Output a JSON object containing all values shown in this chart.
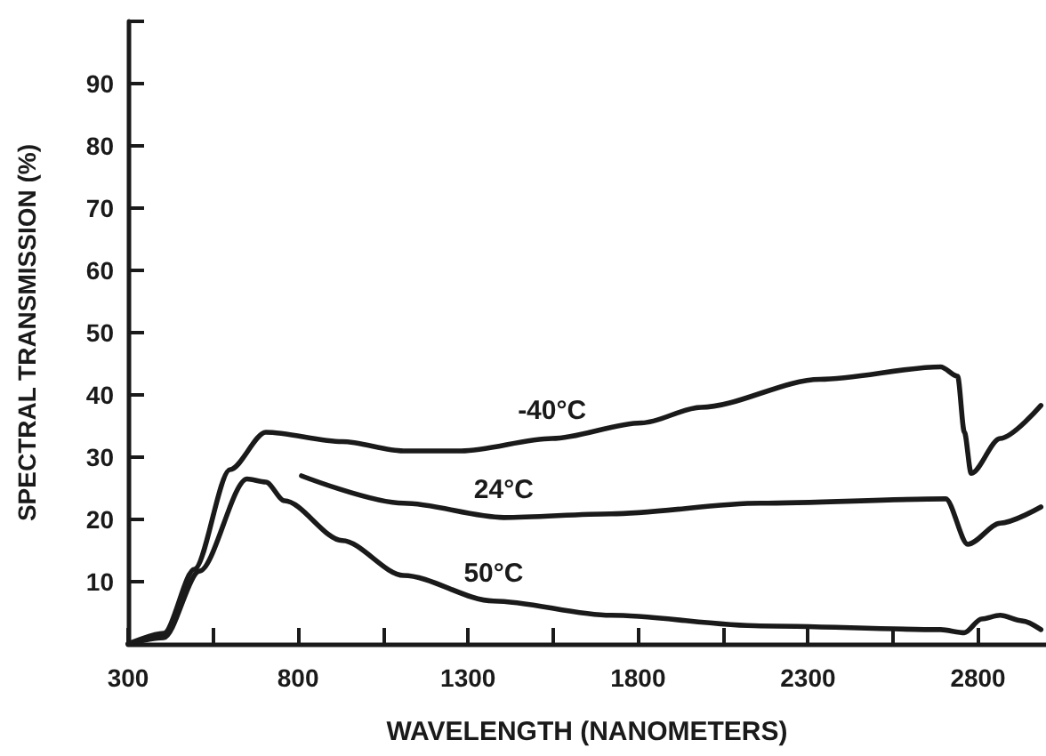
{
  "chart_data": {
    "type": "line",
    "xlabel": "WAVELENGTH (NANOMETERS)",
    "ylabel": "SPECTRAL TRANSMISSION (%)",
    "xlim": [
      300,
      3000
    ],
    "ylim": [
      0,
      100
    ],
    "xticks": [
      300,
      {
        "value": 550,
        "label": null
      },
      800,
      {
        "value": 1050,
        "label": null
      },
      1300,
      {
        "value": 1550,
        "label": null
      },
      1800,
      {
        "value": 2050,
        "label": null
      },
      2300,
      {
        "value": 2550,
        "label": null
      },
      2800
    ],
    "yticks": [
      10,
      20,
      30,
      40,
      50,
      60,
      70,
      80,
      90,
      {
        "value": 100,
        "label": null
      }
    ],
    "grid": false,
    "legend": false,
    "marker": "none",
    "line_style": "solid",
    "series": [
      {
        "name": "-40°C",
        "color": "#1a1a1a",
        "x": [
          300,
          405,
          495,
          600,
          705,
          930,
          1110,
          1280,
          1547,
          1810,
          1985,
          2335,
          2690,
          2740,
          2760,
          2780,
          2865,
          2985
        ],
        "values": [
          0,
          1.7,
          12,
          28,
          34,
          32.5,
          31,
          31,
          33,
          35.5,
          38,
          42.5,
          44.5,
          43,
          34,
          27.4,
          33,
          38.3
        ]
      },
      {
        "name": "24°C",
        "color": "#1a1a1a",
        "x": [
          810,
          1110,
          1405,
          1720,
          2160,
          2705,
          2770,
          2865,
          2985
        ],
        "values": [
          27,
          22.6,
          20.3,
          20.9,
          22.6,
          23.3,
          16,
          19.4,
          22
        ]
      },
      {
        "name": "50°C",
        "color": "#1a1a1a",
        "x": [
          300,
          405,
          510,
          650,
          705,
          760,
          930,
          1110,
          1375,
          1720,
          2160,
          2690,
          2760,
          2810,
          2865,
          2930,
          2985
        ],
        "values": [
          0,
          1,
          11.7,
          26.5,
          26,
          23,
          16.6,
          11,
          6.9,
          4.6,
          2.9,
          2.3,
          1.8,
          4,
          4.6,
          3.7,
          2.3
        ]
      }
    ]
  }
}
